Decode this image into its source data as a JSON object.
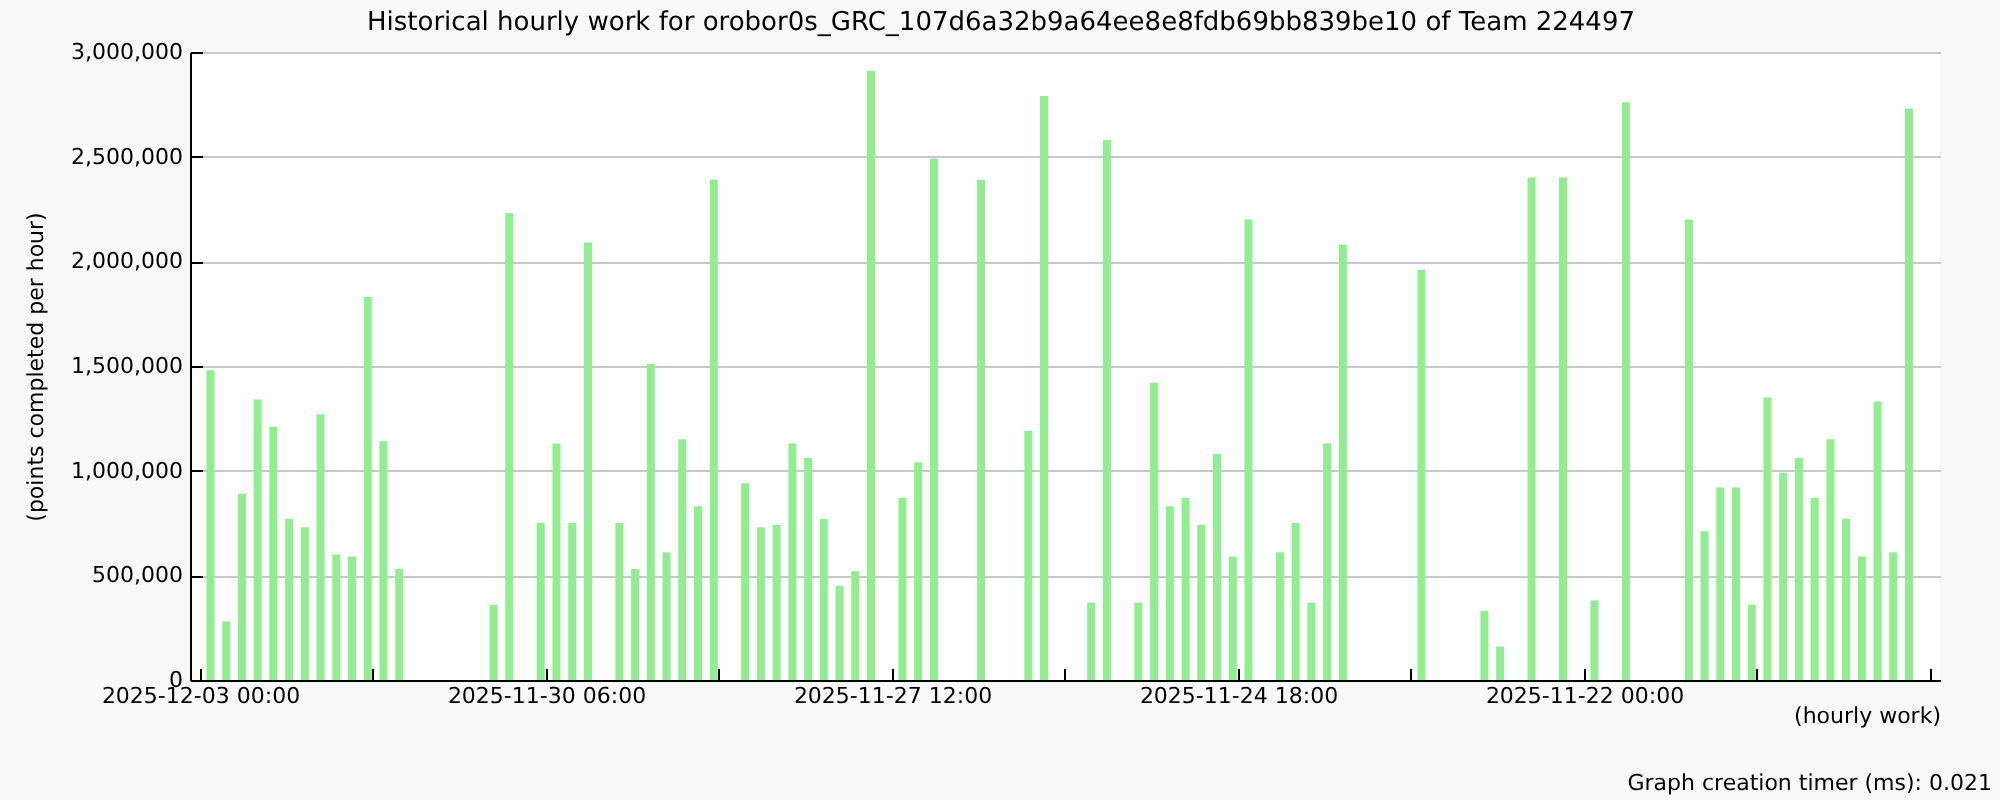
{
  "chart_data": {
    "type": "bar",
    "title": "Historical hourly work for orobor0s_GRC_107d6a32b9a64ee8e8fdb69bb839be10 of Team 224497",
    "xlabel": "(hourly work)",
    "ylabel": "(points completed per hour)",
    "annotations": [
      "Graph creation timer (ms): 0.021"
    ],
    "x": [
      "2025-12-02T22:00",
      "2025-12-02T19:00",
      "2025-12-02T16:00",
      "2025-12-02T13:00",
      "2025-12-02T10:00",
      "2025-12-02T07:00",
      "2025-12-02T04:00",
      "2025-12-02T01:00",
      "2025-12-01T22:00",
      "2025-12-01T19:00",
      "2025-12-01T16:00",
      "2025-12-01T13:00",
      "2025-12-01T10:00",
      "2025-11-30T16:00",
      "2025-11-30T13:00",
      "2025-11-30T07:00",
      "2025-11-30T04:00",
      "2025-11-30T01:00",
      "2025-11-29T22:00",
      "2025-11-29T16:00",
      "2025-11-29T13:00",
      "2025-11-29T10:00",
      "2025-11-29T07:00",
      "2025-11-29T04:00",
      "2025-11-29T01:00",
      "2025-11-28T22:00",
      "2025-11-28T16:00",
      "2025-11-28T13:00",
      "2025-11-28T10:00",
      "2025-11-28T07:00",
      "2025-11-28T04:00",
      "2025-11-28T01:00",
      "2025-11-27T22:00",
      "2025-11-27T19:00",
      "2025-11-27T16:00",
      "2025-11-27T10:00",
      "2025-11-27T07:00",
      "2025-11-27T04:00",
      "2025-11-26T19:00",
      "2025-11-26T10:00",
      "2025-11-26T07:00",
      "2025-11-25T22:00",
      "2025-11-25T19:00",
      "2025-11-25T13:00",
      "2025-11-25T10:00",
      "2025-11-25T07:00",
      "2025-11-25T04:00",
      "2025-11-25T01:00",
      "2025-11-24T22:00",
      "2025-11-24T19:00",
      "2025-11-24T16:00",
      "2025-11-24T10:00",
      "2025-11-24T07:00",
      "2025-11-24T04:00",
      "2025-11-24T01:00",
      "2025-11-23T22:00",
      "2025-11-23T07:00",
      "2025-11-22T19:00",
      "2025-11-22T16:00",
      "2025-11-22T10:00",
      "2025-11-22T04:00",
      "2025-11-21T22:00",
      "2025-11-21T16:00",
      "2025-11-21T04:00",
      "2025-11-21T01:00",
      "2025-11-20T22:00",
      "2025-11-20T19:00",
      "2025-11-20T16:00",
      "2025-11-20T13:00",
      "2025-11-20T10:00",
      "2025-11-20T07:00",
      "2025-11-20T04:00",
      "2025-11-20T01:00",
      "2025-11-19T22:00",
      "2025-11-19T19:00",
      "2025-11-19T16:00",
      "2025-11-19T13:00",
      "2025-11-19T10:00"
    ],
    "values": [
      1480000,
      280000,
      890000,
      1340000,
      1210000,
      770000,
      730000,
      1270000,
      600000,
      590000,
      1830000,
      1140000,
      530000,
      360000,
      2230000,
      750000,
      1130000,
      750000,
      2090000,
      750000,
      530000,
      1510000,
      610000,
      1150000,
      830000,
      2390000,
      940000,
      730000,
      740000,
      1130000,
      1060000,
      770000,
      450000,
      520000,
      2910000,
      870000,
      1040000,
      2490000,
      2390000,
      1190000,
      2790000,
      370000,
      2580000,
      370000,
      1420000,
      830000,
      870000,
      740000,
      1080000,
      590000,
      2200000,
      610000,
      750000,
      370000,
      1130000,
      2080000,
      1960000,
      330000,
      160000,
      2400000,
      2400000,
      380000,
      2760000,
      2200000,
      710000,
      920000,
      920000,
      360000,
      1350000,
      990000,
      1060000,
      870000,
      1150000,
      770000,
      590000,
      1330000,
      610000,
      2730000
    ],
    "color": "#90ee90",
    "xlim": [
      "2025-12-03T00:00",
      "2025-11-19T06:00"
    ],
    "xticks": [
      {
        "value": "2025-12-03T00:00",
        "label": "2025-12-03 00:00"
      },
      {
        "value": "2025-12-01T15:00",
        "label": null
      },
      {
        "value": "2025-11-30T06:00",
        "label": "2025-11-30 06:00"
      },
      {
        "value": "2025-11-28T21:00",
        "label": null
      },
      {
        "value": "2025-11-27T12:00",
        "label": "2025-11-27 12:00"
      },
      {
        "value": "2025-11-26T03:00",
        "label": null
      },
      {
        "value": "2025-11-24T18:00",
        "label": "2025-11-24 18:00"
      },
      {
        "value": "2025-11-23T09:00",
        "label": null
      },
      {
        "value": "2025-11-22T00:00",
        "label": "2025-11-22 00:00"
      },
      {
        "value": "2025-11-20T15:00",
        "label": null
      },
      {
        "value": "2025-11-19T06:00",
        "label": null
      }
    ],
    "ylim": [
      0,
      3000000
    ],
    "yticks": [
      {
        "value": 0,
        "label": "0"
      },
      {
        "value": 500000,
        "label": "500,000"
      },
      {
        "value": 1000000,
        "label": "1,000,000"
      },
      {
        "value": 1500000,
        "label": "1,500,000"
      },
      {
        "value": 2000000,
        "label": "2,000,000"
      },
      {
        "value": 2500000,
        "label": "2,500,000"
      },
      {
        "value": 3000000,
        "label": "3,000,000"
      }
    ],
    "grid": "y"
  }
}
